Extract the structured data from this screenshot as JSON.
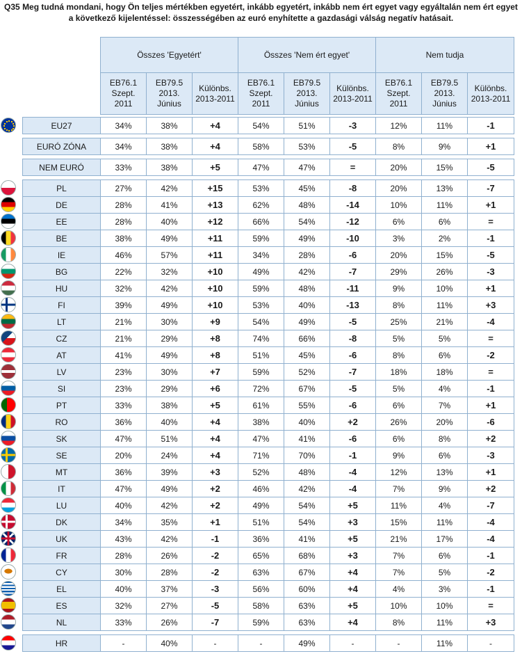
{
  "title_line1": "Q35 Meg tudná mondani, hogy Ön teljes mértékben egyetért, inkább egyetért, inkább nem ért egyet vagy egyáltalán nem ért egyet",
  "title_line2": "a következő kijelentéssel: összességében az euró enyhítette a gazdasági válság negatív hatásait.",
  "groups": [
    "Összes 'Egyetért'",
    "Összes 'Nem ért egyet'",
    "Nem tudja"
  ],
  "subheaders": [
    [
      "EB76.1",
      "Szept.",
      "2011"
    ],
    [
      "EB79.5",
      "2013.",
      "Június"
    ],
    [
      "Különbs.",
      "2013-2011"
    ]
  ],
  "colors": {
    "header_bg": "#dce9f6",
    "border": "#8fb0cf"
  },
  "rows": [
    {
      "c": "EU27",
      "flag": "eu-flag-icon",
      "v": [
        "34%",
        "38%",
        "+4",
        "54%",
        "51%",
        "-3",
        "12%",
        "11%",
        "-1"
      ]
    },
    {
      "c": "EURÓ ZÓNA",
      "flag": "",
      "v": [
        "34%",
        "38%",
        "+4",
        "58%",
        "53%",
        "-5",
        "8%",
        "9%",
        "+1"
      ]
    },
    {
      "c": "NEM EURÓ",
      "flag": "",
      "v": [
        "33%",
        "38%",
        "+5",
        "47%",
        "47%",
        "=",
        "20%",
        "15%",
        "-5"
      ]
    },
    {
      "c": "PL",
      "flag": "poland-flag-icon",
      "v": [
        "27%",
        "42%",
        "+15",
        "53%",
        "45%",
        "-8",
        "20%",
        "13%",
        "-7"
      ]
    },
    {
      "c": "DE",
      "flag": "germany-flag-icon",
      "v": [
        "28%",
        "41%",
        "+13",
        "62%",
        "48%",
        "-14",
        "10%",
        "11%",
        "+1"
      ]
    },
    {
      "c": "EE",
      "flag": "estonia-flag-icon",
      "v": [
        "28%",
        "40%",
        "+12",
        "66%",
        "54%",
        "-12",
        "6%",
        "6%",
        "="
      ]
    },
    {
      "c": "BE",
      "flag": "belgium-flag-icon",
      "v": [
        "38%",
        "49%",
        "+11",
        "59%",
        "49%",
        "-10",
        "3%",
        "2%",
        "-1"
      ]
    },
    {
      "c": "IE",
      "flag": "ireland-flag-icon",
      "v": [
        "46%",
        "57%",
        "+11",
        "34%",
        "28%",
        "-6",
        "20%",
        "15%",
        "-5"
      ]
    },
    {
      "c": "BG",
      "flag": "bulgaria-flag-icon",
      "v": [
        "22%",
        "32%",
        "+10",
        "49%",
        "42%",
        "-7",
        "29%",
        "26%",
        "-3"
      ]
    },
    {
      "c": "HU",
      "flag": "hungary-flag-icon",
      "v": [
        "32%",
        "42%",
        "+10",
        "59%",
        "48%",
        "-11",
        "9%",
        "10%",
        "+1"
      ]
    },
    {
      "c": "FI",
      "flag": "finland-flag-icon",
      "v": [
        "39%",
        "49%",
        "+10",
        "53%",
        "40%",
        "-13",
        "8%",
        "11%",
        "+3"
      ]
    },
    {
      "c": "LT",
      "flag": "lithuania-flag-icon",
      "v": [
        "21%",
        "30%",
        "+9",
        "54%",
        "49%",
        "-5",
        "25%",
        "21%",
        "-4"
      ]
    },
    {
      "c": "CZ",
      "flag": "czechia-flag-icon",
      "v": [
        "21%",
        "29%",
        "+8",
        "74%",
        "66%",
        "-8",
        "5%",
        "5%",
        "="
      ]
    },
    {
      "c": "AT",
      "flag": "austria-flag-icon",
      "v": [
        "41%",
        "49%",
        "+8",
        "51%",
        "45%",
        "-6",
        "8%",
        "6%",
        "-2"
      ]
    },
    {
      "c": "LV",
      "flag": "latvia-flag-icon",
      "v": [
        "23%",
        "30%",
        "+7",
        "59%",
        "52%",
        "-7",
        "18%",
        "18%",
        "="
      ]
    },
    {
      "c": "SI",
      "flag": "slovenia-flag-icon",
      "v": [
        "23%",
        "29%",
        "+6",
        "72%",
        "67%",
        "-5",
        "5%",
        "4%",
        "-1"
      ]
    },
    {
      "c": "PT",
      "flag": "portugal-flag-icon",
      "v": [
        "33%",
        "38%",
        "+5",
        "61%",
        "55%",
        "-6",
        "6%",
        "7%",
        "+1"
      ]
    },
    {
      "c": "RO",
      "flag": "romania-flag-icon",
      "v": [
        "36%",
        "40%",
        "+4",
        "38%",
        "40%",
        "+2",
        "26%",
        "20%",
        "-6"
      ]
    },
    {
      "c": "SK",
      "flag": "slovakia-flag-icon",
      "v": [
        "47%",
        "51%",
        "+4",
        "47%",
        "41%",
        "-6",
        "6%",
        "8%",
        "+2"
      ]
    },
    {
      "c": "SE",
      "flag": "sweden-flag-icon",
      "v": [
        "20%",
        "24%",
        "+4",
        "71%",
        "70%",
        "-1",
        "9%",
        "6%",
        "-3"
      ]
    },
    {
      "c": "MT",
      "flag": "malta-flag-icon",
      "v": [
        "36%",
        "39%",
        "+3",
        "52%",
        "48%",
        "-4",
        "12%",
        "13%",
        "+1"
      ]
    },
    {
      "c": "IT",
      "flag": "italy-flag-icon",
      "v": [
        "47%",
        "49%",
        "+2",
        "46%",
        "42%",
        "-4",
        "7%",
        "9%",
        "+2"
      ]
    },
    {
      "c": "LU",
      "flag": "luxembourg-flag-icon",
      "v": [
        "40%",
        "42%",
        "+2",
        "49%",
        "54%",
        "+5",
        "11%",
        "4%",
        "-7"
      ]
    },
    {
      "c": "DK",
      "flag": "denmark-flag-icon",
      "v": [
        "34%",
        "35%",
        "+1",
        "51%",
        "54%",
        "+3",
        "15%",
        "11%",
        "-4"
      ]
    },
    {
      "c": "UK",
      "flag": "uk-flag-icon",
      "v": [
        "43%",
        "42%",
        "-1",
        "36%",
        "41%",
        "+5",
        "21%",
        "17%",
        "-4"
      ]
    },
    {
      "c": "FR",
      "flag": "france-flag-icon",
      "v": [
        "28%",
        "26%",
        "-2",
        "65%",
        "68%",
        "+3",
        "7%",
        "6%",
        "-1"
      ]
    },
    {
      "c": "CY",
      "flag": "cyprus-flag-icon",
      "v": [
        "30%",
        "28%",
        "-2",
        "63%",
        "67%",
        "+4",
        "7%",
        "5%",
        "-2"
      ]
    },
    {
      "c": "EL",
      "flag": "greece-flag-icon",
      "v": [
        "40%",
        "37%",
        "-3",
        "56%",
        "60%",
        "+4",
        "4%",
        "3%",
        "-1"
      ]
    },
    {
      "c": "ES",
      "flag": "spain-flag-icon",
      "v": [
        "32%",
        "27%",
        "-5",
        "58%",
        "63%",
        "+5",
        "10%",
        "10%",
        "="
      ]
    },
    {
      "c": "NL",
      "flag": "netherlands-flag-icon",
      "v": [
        "33%",
        "26%",
        "-7",
        "59%",
        "63%",
        "+4",
        "8%",
        "11%",
        "+3"
      ]
    },
    {
      "c": "HR",
      "flag": "croatia-flag-icon",
      "v": [
        "-",
        "40%",
        "-",
        "-",
        "49%",
        "-",
        "-",
        "11%",
        "-"
      ]
    }
  ]
}
